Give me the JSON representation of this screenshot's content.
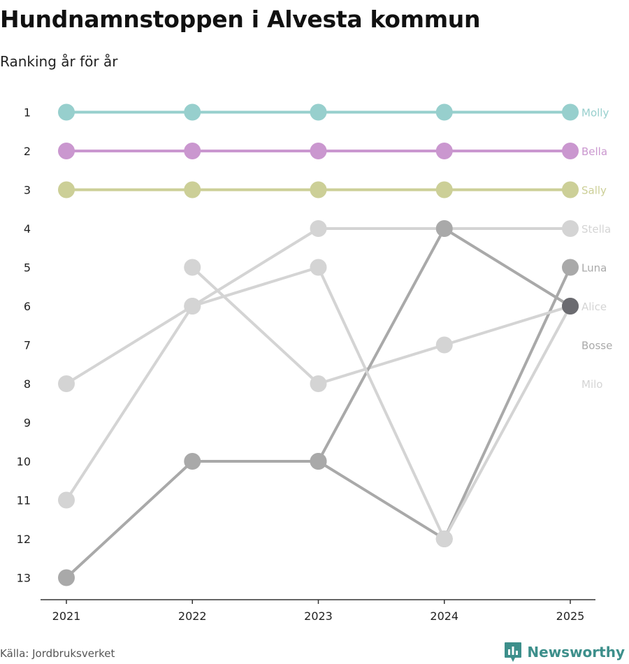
{
  "title": "Hundnamnstoppen i Alvesta kommun",
  "subtitle": "Ranking år för år",
  "source": "Källa: Jordbruksverket",
  "brand": "Newsworthy",
  "colors": {
    "axis": "#333333",
    "brand": "#3d8f8b"
  },
  "chart_data": {
    "type": "line",
    "x": [
      "2021",
      "2022",
      "2023",
      "2024",
      "2025"
    ],
    "y_ticks": [
      1,
      2,
      3,
      4,
      5,
      6,
      7,
      8,
      9,
      10,
      11,
      12,
      13
    ],
    "ylim": [
      1,
      13
    ],
    "y_inverted": true,
    "series": [
      {
        "name": "Molly",
        "color": "#97cfcd",
        "ranks": [
          1,
          1,
          1,
          1,
          1
        ]
      },
      {
        "name": "Bella",
        "color": "#ca97cf",
        "ranks": [
          2,
          2,
          2,
          2,
          2
        ]
      },
      {
        "name": "Sally",
        "color": "#cccf97",
        "ranks": [
          3,
          3,
          3,
          3,
          3
        ]
      },
      {
        "name": "Stella",
        "color": "#d4d4d4",
        "ranks": [
          8,
          6,
          4,
          4,
          4
        ]
      },
      {
        "name": "Luna",
        "color": "#a9a9a9",
        "ranks": [
          13,
          10,
          10,
          12,
          5
        ]
      },
      {
        "name": "Alice",
        "color": "#d4d4d4",
        "ranks": [
          null,
          5,
          8,
          7,
          6
        ]
      },
      {
        "name": "Bosse",
        "color": "#a9a9a9",
        "ranks": [
          null,
          null,
          10,
          4,
          6
        ]
      },
      {
        "name": "Milo",
        "color": "#d4d4d4",
        "ranks": [
          11,
          6,
          5,
          12,
          6
        ]
      }
    ],
    "overlap_point_color": "#6b6b70"
  }
}
